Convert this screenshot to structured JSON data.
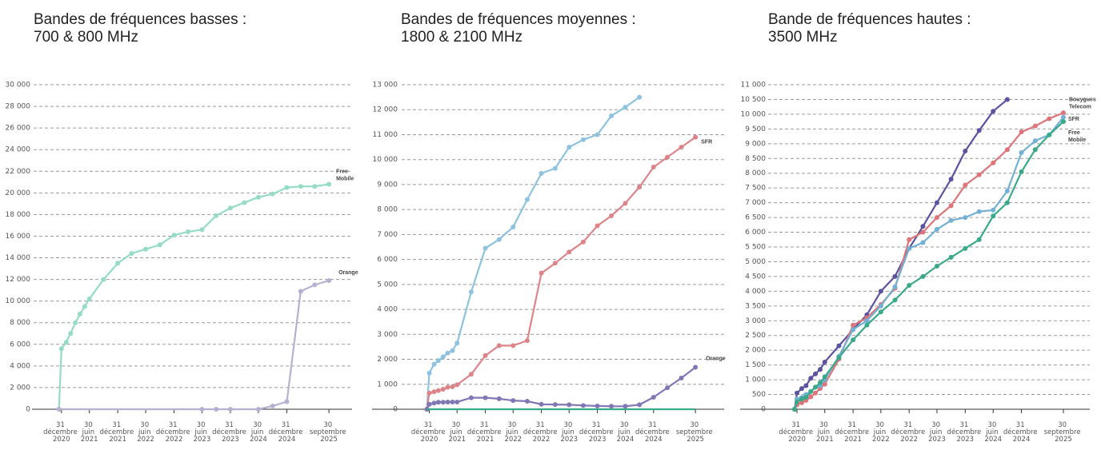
{
  "chart_data": [
    {
      "type": "line",
      "title": "Bandes de fréquences basses :",
      "subtitle": "700 & 800 MHz",
      "xlim": [
        "2020-06-23",
        "2026-02-27"
      ],
      "xticks": [
        {
          "value": "2020-12-31",
          "label": "31 décembre 2020"
        },
        {
          "value": "2021-06-30",
          "label": "30 juin 2021"
        },
        {
          "value": "2021-12-31",
          "label": "31 décembre 2021"
        },
        {
          "value": "2022-06-30",
          "label": "30 juin 2022"
        },
        {
          "value": "2022-12-31",
          "label": "31 décembre 2022"
        },
        {
          "value": "2023-06-30",
          "label": "30 juin 2023"
        },
        {
          "value": "2023-12-31",
          "label": "31 décembre 2023"
        },
        {
          "value": "2024-06-30",
          "label": "30 juin 2024"
        },
        {
          "value": "2024-12-31",
          "label": "31 décembre 2024"
        },
        {
          "value": "2025-09-30",
          "label": "30 septembre 2025"
        }
      ],
      "ylim": [
        0,
        30000
      ],
      "yticks": [
        0,
        {
          "value": 2000,
          "label": "2 000"
        },
        {
          "value": 4000,
          "label": "4 000"
        },
        {
          "value": 6000,
          "label": "6 000"
        },
        {
          "value": 8000,
          "label": "8 000"
        },
        {
          "value": 10000,
          "label": "10 000"
        },
        {
          "value": 12000,
          "label": "12 000"
        },
        {
          "value": 14000,
          "label": "14 000"
        },
        {
          "value": 16000,
          "label": "16 000"
        },
        {
          "value": 18000,
          "label": "18 000"
        },
        {
          "value": 20000,
          "label": "20 000"
        },
        {
          "value": 22000,
          "label": "22 000"
        },
        {
          "value": 24000,
          "label": "24 000"
        },
        {
          "value": 26000,
          "label": "26 000"
        },
        {
          "value": 28000,
          "label": "28 000"
        },
        {
          "value": 30000,
          "label": "30 000"
        }
      ],
      "grid": true,
      "series": [
        {
          "name": "Free Mobile",
          "color": "#94dcc2",
          "x": [
            "2020-12-15",
            "2020-12-31",
            "2021-01-31",
            "2021-02-28",
            "2021-03-31",
            "2021-04-30",
            "2021-05-31",
            "2021-06-30",
            "2021-09-30",
            "2021-12-31",
            "2022-03-31",
            "2022-06-30",
            "2022-09-30",
            "2022-12-31",
            "2023-03-31",
            "2023-06-30",
            "2023-09-30",
            "2023-12-31",
            "2024-03-31",
            "2024-06-30",
            "2024-09-30",
            "2024-12-31",
            "2025-03-31",
            "2025-06-30",
            "2025-09-30"
          ],
          "values": [
            0,
            5600,
            6200,
            7000,
            8000,
            8800,
            9500,
            10200,
            12000,
            13500,
            14400,
            14800,
            15200,
            16100,
            16400,
            16600,
            17900,
            18600,
            19100,
            19600,
            19900,
            20500,
            20600,
            20600,
            20800
          ]
        },
        {
          "name": "Orange",
          "color": "#b7b0d0",
          "x": [
            "2020-12-15",
            "2023-06-30",
            "2023-09-30",
            "2023-12-31",
            "2024-06-30",
            "2024-09-30",
            "2024-12-31",
            "2025-03-31",
            "2025-06-30",
            "2025-09-30"
          ],
          "values": [
            0,
            0,
            0,
            0,
            0,
            300,
            700,
            10900,
            11500,
            11900
          ]
        }
      ]
    },
    {
      "type": "line",
      "title": "Bandes de fréquences moyennes :",
      "subtitle": "1800 & 2100 MHz",
      "xlim": [
        "2019-12-24",
        "2026-04-05"
      ],
      "xticks": [
        {
          "value": "2020-12-31",
          "label": "31 décembre 2020"
        },
        {
          "value": "2021-06-30",
          "label": "30 juin 2021"
        },
        {
          "value": "2021-12-31",
          "label": "31 décembre 2021"
        },
        {
          "value": "2022-06-30",
          "label": "30 juin 2022"
        },
        {
          "value": "2022-12-31",
          "label": "31 décembre 2022"
        },
        {
          "value": "2023-06-30",
          "label": "30 juin 2023"
        },
        {
          "value": "2023-12-31",
          "label": "31 décembre 2023"
        },
        {
          "value": "2024-06-30",
          "label": "30 juin 2024"
        },
        {
          "value": "2024-12-31",
          "label": "31 décembre 2024"
        },
        {
          "value": "2025-09-30",
          "label": "30 septembre 2025"
        }
      ],
      "ylim": [
        0,
        13000
      ],
      "yticks": [
        0,
        {
          "value": 1000,
          "label": "1 000"
        },
        {
          "value": 2000,
          "label": "2 000"
        },
        {
          "value": 3000,
          "label": "3 000"
        },
        {
          "value": 4000,
          "label": "4 000"
        },
        {
          "value": 5000,
          "label": "5 000"
        },
        {
          "value": 6000,
          "label": "6 000"
        },
        {
          "value": 7000,
          "label": "7 000"
        },
        {
          "value": 8000,
          "label": "8 000"
        },
        {
          "value": 9000,
          "label": "9 000"
        },
        {
          "value": 10000,
          "label": "10 000"
        },
        {
          "value": 11000,
          "label": "11 000"
        },
        {
          "value": 12000,
          "label": "12 000"
        },
        {
          "value": 13000,
          "label": "13 000"
        }
      ],
      "grid": true,
      "series": [
        {
          "color": "#8ec3df",
          "x": [
            "2020-12-15",
            "2020-12-31",
            "2021-01-31",
            "2021-02-28",
            "2021-03-31",
            "2021-04-30",
            "2021-05-31",
            "2021-06-30",
            "2021-09-30",
            "2021-12-31",
            "2022-03-31",
            "2022-06-30",
            "2022-09-30",
            "2022-12-31",
            "2023-03-31",
            "2023-06-30",
            "2023-09-30",
            "2023-12-31",
            "2024-03-31",
            "2024-06-30",
            "2024-09-30"
          ],
          "values": [
            0,
            1450,
            1800,
            1950,
            2100,
            2250,
            2350,
            2650,
            4700,
            6450,
            6800,
            7300,
            8400,
            9450,
            9650,
            10500,
            10800,
            11000,
            11750,
            12100,
            12500
          ]
        },
        {
          "name": "SFR",
          "color": "#dd8489",
          "x": [
            "2020-12-15",
            "2020-12-31",
            "2021-01-31",
            "2021-02-28",
            "2021-03-31",
            "2021-04-30",
            "2021-05-31",
            "2021-06-30",
            "2021-09-30",
            "2021-12-31",
            "2022-03-31",
            "2022-06-30",
            "2022-09-30",
            "2022-12-31",
            "2023-03-31",
            "2023-06-30",
            "2023-09-30",
            "2023-12-31",
            "2024-03-31",
            "2024-06-30",
            "2024-09-30",
            "2024-12-31",
            "2025-03-31",
            "2025-06-30",
            "2025-09-30"
          ],
          "values": [
            0,
            650,
            700,
            750,
            800,
            880,
            900,
            980,
            1400,
            2150,
            2550,
            2550,
            2750,
            5450,
            5850,
            6300,
            6700,
            7350,
            7750,
            8250,
            8900,
            9700,
            10100,
            10500,
            10900
          ]
        },
        {
          "name": "Orange",
          "color": "#7f78b5",
          "x": [
            "2020-12-15",
            "2020-12-31",
            "2021-01-31",
            "2021-02-28",
            "2021-03-31",
            "2021-04-30",
            "2021-05-31",
            "2021-06-30",
            "2021-09-30",
            "2021-12-31",
            "2022-03-31",
            "2022-06-30",
            "2022-09-30",
            "2022-12-31",
            "2023-03-31",
            "2023-06-30",
            "2023-09-30",
            "2023-12-31",
            "2024-03-31",
            "2024-06-30",
            "2024-09-30",
            "2024-12-31",
            "2025-03-31",
            "2025-06-30",
            "2025-09-30"
          ],
          "values": [
            0,
            200,
            250,
            280,
            280,
            290,
            290,
            290,
            460,
            460,
            420,
            350,
            320,
            200,
            190,
            180,
            150,
            130,
            120,
            120,
            180,
            480,
            860,
            1250,
            1680
          ]
        },
        {
          "color": "#3aa98a",
          "markers": false,
          "x": [
            "2020-12-15",
            "2025-09-30"
          ],
          "values": [
            0,
            0
          ]
        }
      ]
    },
    {
      "type": "line",
      "title": "Bande de fréquences hautes :",
      "subtitle": "3500 MHz",
      "xlim": [
        "2019-12-27",
        "2026-03-21"
      ],
      "xticks": [
        {
          "value": "2020-12-31",
          "label": "31 décembre 2020"
        },
        {
          "value": "2021-06-30",
          "label": "30 juin 2021"
        },
        {
          "value": "2021-12-31",
          "label": "31 décembre 2021"
        },
        {
          "value": "2022-06-30",
          "label": "30 juin 2022"
        },
        {
          "value": "2022-12-31",
          "label": "31 décembre 2022"
        },
        {
          "value": "2023-06-30",
          "label": "30 juin 2023"
        },
        {
          "value": "2023-12-31",
          "label": "31 décembre 2023"
        },
        {
          "value": "2024-06-30",
          "label": "30 juin 2024"
        },
        {
          "value": "2024-12-31",
          "label": "31 décembre 2024"
        },
        {
          "value": "2025-09-30",
          "label": "30 septembre 2025"
        }
      ],
      "ylim": [
        0,
        11000
      ],
      "yticks": [
        0,
        500,
        {
          "value": 1000,
          "label": "1 000"
        },
        {
          "value": 1500,
          "label": "1 500"
        },
        {
          "value": 2000,
          "label": "2 000"
        },
        {
          "value": 2500,
          "label": "2 500"
        },
        {
          "value": 3000,
          "label": "3 000"
        },
        {
          "value": 3500,
          "label": "3 500"
        },
        {
          "value": 4000,
          "label": "4 000"
        },
        {
          "value": 4500,
          "label": "4 500"
        },
        {
          "value": 5000,
          "label": "5 000"
        },
        {
          "value": 5500,
          "label": "5 500"
        },
        {
          "value": 6000,
          "label": "6 000"
        },
        {
          "value": 6500,
          "label": "6 500"
        },
        {
          "value": 7000,
          "label": "7 000"
        },
        {
          "value": 7500,
          "label": "7 500"
        },
        {
          "value": 8000,
          "label": "8 000"
        },
        {
          "value": 8500,
          "label": "8 500"
        },
        {
          "value": 9000,
          "label": "9 000"
        },
        {
          "value": 9500,
          "label": "9 500"
        },
        {
          "value": 10000,
          "label": "10 000"
        },
        {
          "value": 10500,
          "label": "10 500"
        },
        {
          "value": 11000,
          "label": "11 000"
        }
      ],
      "grid": true,
      "series": [
        {
          "color": "#5b52a0",
          "x": [
            "2020-12-15",
            "2020-12-31",
            "2021-01-31",
            "2021-02-28",
            "2021-03-31",
            "2021-04-30",
            "2021-05-31",
            "2021-06-30",
            "2021-09-30",
            "2021-12-31",
            "2022-03-31",
            "2022-06-30",
            "2022-09-30",
            "2022-12-31",
            "2023-03-31",
            "2023-06-30",
            "2023-09-30",
            "2023-12-31",
            "2024-03-31",
            "2024-06-30",
            "2024-09-30"
          ],
          "values": [
            0,
            550,
            700,
            800,
            1050,
            1200,
            1350,
            1600,
            2150,
            2700,
            3200,
            4000,
            4500,
            5450,
            6200,
            7000,
            7800,
            8750,
            9450,
            10100,
            10500
          ]
        },
        {
          "name": "SFR",
          "color": "#dd7479",
          "x": [
            "2020-12-15",
            "2020-12-31",
            "2021-01-31",
            "2021-02-28",
            "2021-03-31",
            "2021-04-30",
            "2021-05-31",
            "2021-06-30",
            "2021-09-30",
            "2021-12-31",
            "2022-03-31",
            "2022-06-30",
            "2022-09-30",
            "2022-12-31",
            "2023-03-31",
            "2023-06-30",
            "2023-09-30",
            "2023-12-31",
            "2024-03-31",
            "2024-06-30",
            "2024-09-30",
            "2024-12-31",
            "2025-03-31",
            "2025-06-30",
            "2025-09-30"
          ],
          "values": [
            0,
            150,
            220,
            300,
            420,
            550,
            700,
            850,
            1700,
            2850,
            3100,
            3550,
            4100,
            5750,
            6000,
            6500,
            6900,
            7600,
            7950,
            8350,
            8800,
            9400,
            9600,
            9850,
            10050
          ]
        },
        {
          "name": "Bouygues Telecom",
          "color": "#72b0d4",
          "x": [
            "2020-12-15",
            "2020-12-31",
            "2021-01-31",
            "2021-02-28",
            "2021-03-31",
            "2021-04-30",
            "2021-05-31",
            "2021-06-30",
            "2021-09-30",
            "2021-12-31",
            "2022-03-31",
            "2022-06-30",
            "2022-09-30",
            "2022-12-31",
            "2023-03-31",
            "2023-06-30",
            "2023-09-30",
            "2023-12-31",
            "2024-03-31",
            "2024-06-30",
            "2024-09-30",
            "2024-12-31",
            "2025-03-31",
            "2025-06-30",
            "2025-09-30"
          ],
          "values": [
            0,
            350,
            400,
            500,
            600,
            750,
            800,
            1000,
            1800,
            2700,
            3000,
            3500,
            4150,
            5450,
            5650,
            6100,
            6400,
            6500,
            6700,
            6750,
            7400,
            8700,
            9100,
            9300,
            9900
          ]
        },
        {
          "name": "Free Mobile",
          "color": "#3aa98a",
          "x": [
            "2020-12-15",
            "2020-12-31",
            "2021-01-31",
            "2021-02-28",
            "2021-03-31",
            "2021-04-30",
            "2021-05-31",
            "2021-06-30",
            "2021-09-30",
            "2021-12-31",
            "2022-03-31",
            "2022-06-30",
            "2022-09-30",
            "2022-12-31",
            "2023-03-31",
            "2023-06-30",
            "2023-09-30",
            "2023-12-31",
            "2024-03-31",
            "2024-06-30",
            "2024-09-30",
            "2024-12-31",
            "2025-03-31",
            "2025-06-30",
            "2025-09-30"
          ],
          "values": [
            0,
            250,
            350,
            400,
            600,
            750,
            900,
            1100,
            1750,
            2350,
            2850,
            3300,
            3700,
            4200,
            4500,
            4850,
            5150,
            5450,
            5750,
            6550,
            7000,
            8050,
            8800,
            9300,
            9750
          ]
        }
      ]
    }
  ]
}
